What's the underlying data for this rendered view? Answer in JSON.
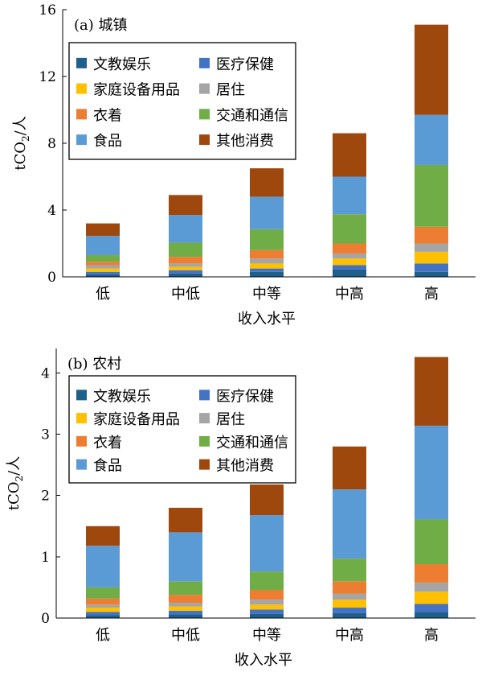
{
  "colors": {
    "culture": "#1f5f8b",
    "medical": "#4472c4",
    "household": "#ffc000",
    "housing": "#a5a5a5",
    "clothing": "#ed7d31",
    "transport": "#70ad47",
    "food": "#5b9bd5",
    "other": "#9e480e"
  },
  "chart_data": [
    {
      "type": "bar",
      "stacked": true,
      "panel_label": "(a)",
      "title": "城镇",
      "xlabel": "收入水平",
      "ylabel": "tCO2/人",
      "ylabel_parts": {
        "pre": "tCO",
        "sub": "2",
        "post": "/人"
      },
      "ylim": [
        0,
        16
      ],
      "yticks": [
        0,
        4,
        8,
        12,
        16
      ],
      "categories": [
        "低",
        "中低",
        "中等",
        "中高",
        "高"
      ],
      "legend_position": "top-left",
      "series": [
        {
          "name": "文教娱乐",
          "color_key": "culture",
          "values": [
            0.15,
            0.2,
            0.3,
            0.45,
            0.3
          ]
        },
        {
          "name": "医疗保健",
          "color_key": "medical",
          "values": [
            0.15,
            0.2,
            0.2,
            0.25,
            0.5
          ]
        },
        {
          "name": "家庭设备用品",
          "color_key": "household",
          "values": [
            0.2,
            0.2,
            0.3,
            0.4,
            0.7
          ]
        },
        {
          "name": "居住",
          "color_key": "housing",
          "values": [
            0.2,
            0.2,
            0.3,
            0.3,
            0.5
          ]
        },
        {
          "name": "衣着",
          "color_key": "clothing",
          "values": [
            0.2,
            0.4,
            0.5,
            0.6,
            1.0
          ]
        },
        {
          "name": "交通和通信",
          "color_key": "transport",
          "values": [
            0.4,
            0.85,
            1.25,
            1.75,
            3.7
          ]
        },
        {
          "name": "食品",
          "color_key": "food",
          "values": [
            1.15,
            1.65,
            1.95,
            2.25,
            3.0
          ]
        },
        {
          "name": "其他消费",
          "color_key": "other",
          "values": [
            0.75,
            1.2,
            1.7,
            2.6,
            5.4
          ]
        }
      ]
    },
    {
      "type": "bar",
      "stacked": true,
      "panel_label": "(b)",
      "title": "农村",
      "xlabel": "收入水平",
      "ylabel": "tCO2/人",
      "ylabel_parts": {
        "pre": "tCO",
        "sub": "2",
        "post": "/人"
      },
      "ylim": [
        0,
        4.4
      ],
      "yticks": [
        0,
        1,
        2,
        3,
        4
      ],
      "categories": [
        "低",
        "中低",
        "中等",
        "中高",
        "高"
      ],
      "legend_position": "top-left",
      "series": [
        {
          "name": "文教娱乐",
          "color_key": "culture",
          "values": [
            0.05,
            0.06,
            0.07,
            0.08,
            0.1
          ]
        },
        {
          "name": "医疗保健",
          "color_key": "medical",
          "values": [
            0.05,
            0.06,
            0.07,
            0.09,
            0.13
          ]
        },
        {
          "name": "家庭设备用品",
          "color_key": "household",
          "values": [
            0.07,
            0.07,
            0.08,
            0.13,
            0.2
          ]
        },
        {
          "name": "居住",
          "color_key": "housing",
          "values": [
            0.05,
            0.06,
            0.08,
            0.1,
            0.15
          ]
        },
        {
          "name": "衣着",
          "color_key": "clothing",
          "values": [
            0.1,
            0.13,
            0.16,
            0.2,
            0.3
          ]
        },
        {
          "name": "交通和通信",
          "color_key": "transport",
          "values": [
            0.18,
            0.22,
            0.3,
            0.37,
            0.73
          ]
        },
        {
          "name": "食品",
          "color_key": "food",
          "values": [
            0.68,
            0.8,
            0.92,
            1.13,
            1.53
          ]
        },
        {
          "name": "其他消费",
          "color_key": "other",
          "values": [
            0.32,
            0.4,
            0.5,
            0.7,
            1.12
          ]
        }
      ]
    }
  ]
}
